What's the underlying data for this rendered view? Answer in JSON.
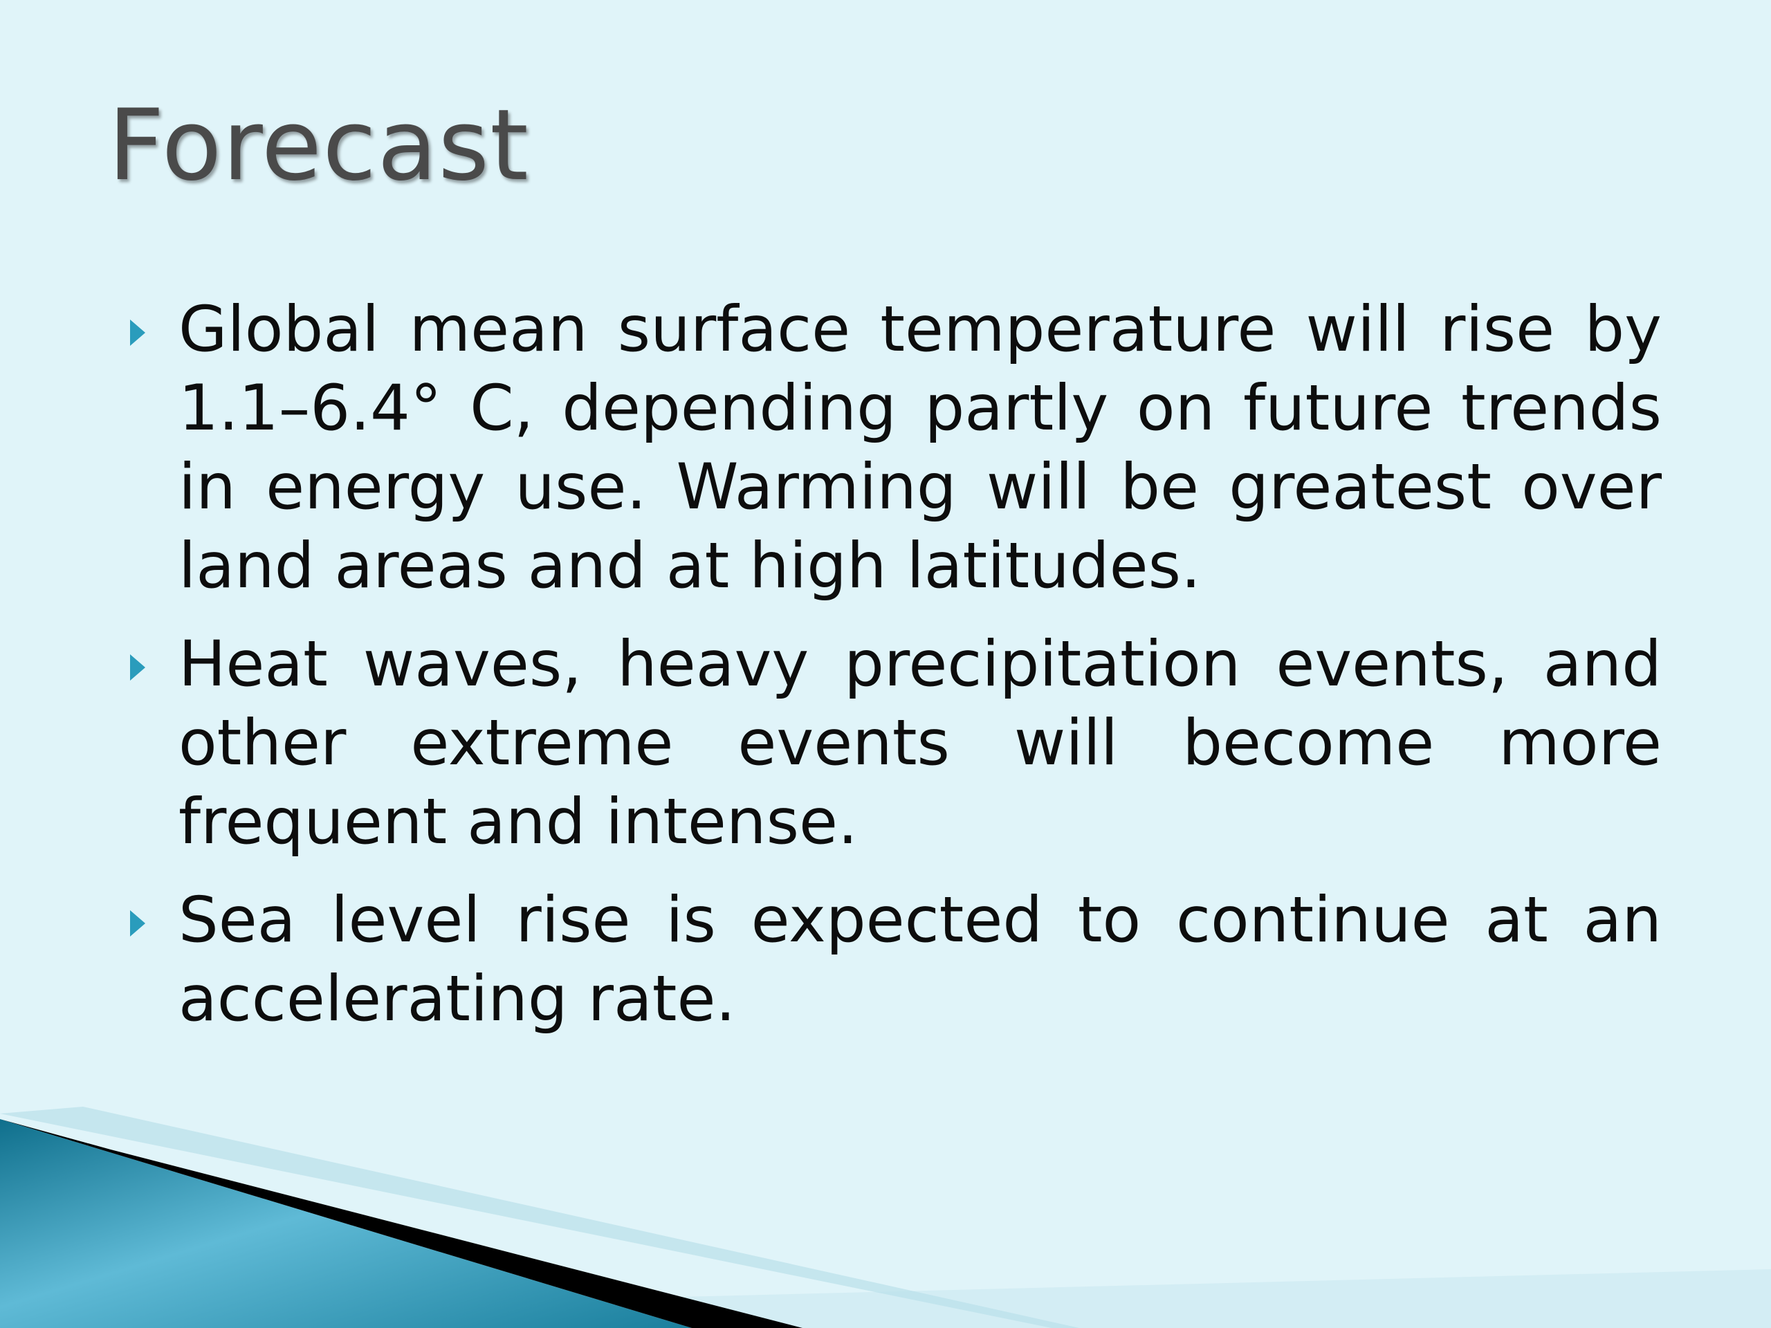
{
  "slide": {
    "title": "Forecast",
    "bullets": [
      {
        "text": "Global mean surface temperature will rise by 1.1–6.4° C, depending partly on future trends in energy use. Warming will be greatest over land areas and at high latitudes."
      },
      {
        "text": "Heat waves, heavy precipitation events, and other extreme events will become more frequent and intense."
      },
      {
        "text": "Sea level rise is expected to continue at an accelerating rate."
      }
    ]
  },
  "colors": {
    "background": "#e0f4f9",
    "title": "#4a4a4a",
    "bullet_marker": "#2a9cbc",
    "accent_teal": "#1f86a6",
    "accent_black": "#000000"
  },
  "icons": {
    "bullet": "triangle-right-icon"
  }
}
